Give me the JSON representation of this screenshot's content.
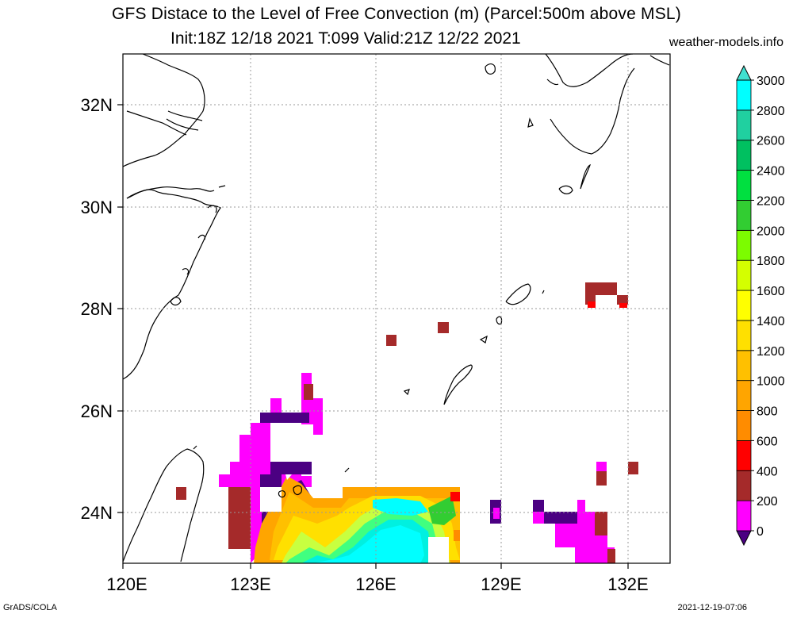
{
  "title": {
    "line1": "GFS Distace to the Level of Free Convection (m) (Parcel:500m above MSL)",
    "line2": "Init:18Z 12/18 2021 T:099 Valid:21Z 12/22 2021",
    "site": "weather-models.info"
  },
  "footer": {
    "left": "GrADS/COLA",
    "right": "2021-12-19-07:06"
  },
  "map": {
    "lon_range": [
      120,
      133
    ],
    "lat_range": [
      23,
      33
    ],
    "x_ticks": [
      "120E",
      "123E",
      "126E",
      "129E",
      "132E"
    ],
    "y_ticks": [
      "24N",
      "26N",
      "28N",
      "30N",
      "32N"
    ],
    "grid": true
  },
  "colorbar": {
    "labels": [
      "0",
      "200",
      "400",
      "600",
      "800",
      "1000",
      "1200",
      "1400",
      "1600",
      "1800",
      "2000",
      "2200",
      "2400",
      "2600",
      "2800",
      "3000"
    ],
    "colors": [
      "#4b0082",
      "#ff00ff",
      "#a52a2a",
      "#ff0000",
      "#ff8c00",
      "#ffa500",
      "#ffc000",
      "#ffe000",
      "#ffff00",
      "#d4ff00",
      "#7cfc00",
      "#32cd32",
      "#00e040",
      "#00c060",
      "#20d0a0",
      "#00ffff",
      "#40e0d0"
    ]
  }
}
